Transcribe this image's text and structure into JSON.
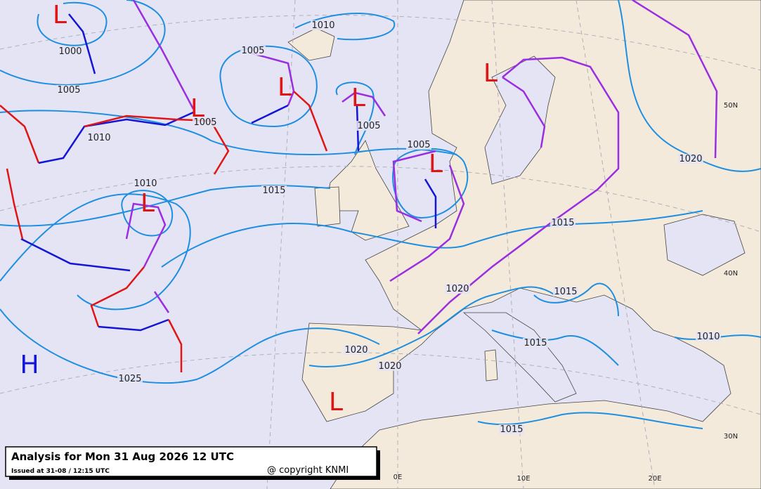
{
  "title": "Analysis for Mon 31 Aug 2026 12 UTC",
  "issued": "Issued at 31-08 / 12:15 UTC",
  "copyright": "@ copyright KNMI",
  "isobar_labels": [
    "1010",
    "1000",
    "1005",
    "1005",
    "1005",
    "1010",
    "1005",
    "1005",
    "1015",
    "1010",
    "1020",
    "1015",
    "1015",
    "1020",
    "1015",
    "1020",
    "1020",
    "1010",
    "1025",
    "1015"
  ],
  "pressure_centers": [
    "L",
    "L",
    "L",
    "L",
    "L",
    "L",
    "L",
    "H",
    "L"
  ],
  "grid_labels": [
    "50N",
    "40N",
    "30N",
    "0E",
    "10E",
    "20E"
  ]
}
